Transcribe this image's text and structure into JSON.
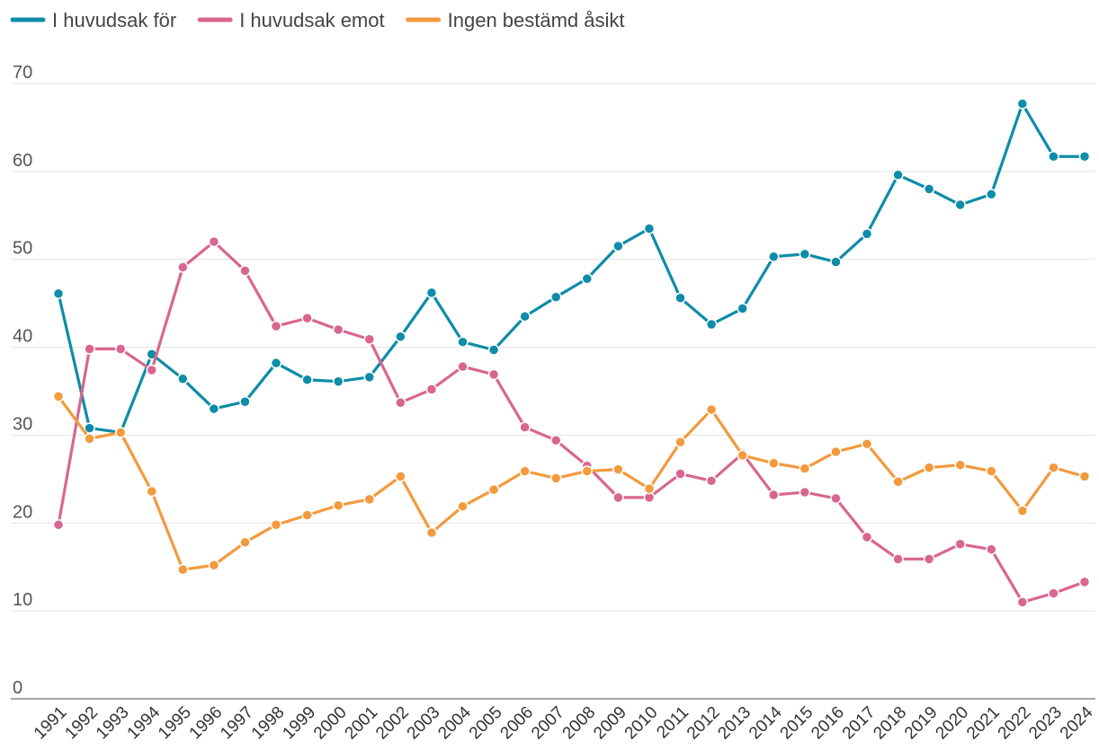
{
  "chart_data": {
    "type": "line",
    "categories": [
      "1991",
      "1992",
      "1993",
      "1994",
      "1995",
      "1996",
      "1997",
      "1998",
      "1999",
      "2000",
      "2001",
      "2002",
      "2003",
      "2004",
      "2005",
      "2006",
      "2007",
      "2008",
      "2009",
      "2010",
      "2011",
      "2012",
      "2013",
      "2014",
      "2015",
      "2016",
      "2017",
      "2018",
      "2019",
      "2020",
      "2021",
      "2022",
      "2023",
      "2024"
    ],
    "series": [
      {
        "name": "I huvudsak för",
        "color": "#0e8ca8",
        "values": [
          46.1,
          30.8,
          30.3,
          39.2,
          36.4,
          33.0,
          33.8,
          38.2,
          36.3,
          36.1,
          36.6,
          41.2,
          46.2,
          40.6,
          39.7,
          43.5,
          45.7,
          47.8,
          51.5,
          53.5,
          45.6,
          42.6,
          44.4,
          50.3,
          50.6,
          49.7,
          52.9,
          59.6,
          58.0,
          56.2,
          57.4,
          67.7,
          61.7,
          61.7
        ]
      },
      {
        "name": "I huvudsak emot",
        "color": "#d9668f",
        "values": [
          19.8,
          39.8,
          39.8,
          37.4,
          49.1,
          52.0,
          48.7,
          42.4,
          43.3,
          42.0,
          40.9,
          33.7,
          35.2,
          37.8,
          36.9,
          30.9,
          29.4,
          26.5,
          22.9,
          22.9,
          25.6,
          24.8,
          27.9,
          23.2,
          23.5,
          22.8,
          18.4,
          15.9,
          15.9,
          17.6,
          17.0,
          11.0,
          12.0,
          13.3
        ]
      },
      {
        "name": "Ingen bestämd åsikt",
        "color": "#f39a3c",
        "values": [
          34.4,
          29.6,
          30.3,
          23.6,
          14.7,
          15.2,
          17.8,
          19.8,
          20.9,
          22.0,
          22.7,
          25.3,
          18.9,
          21.9,
          23.8,
          25.9,
          25.1,
          25.9,
          26.1,
          23.9,
          29.2,
          32.9,
          27.7,
          26.8,
          26.2,
          28.1,
          29.0,
          24.7,
          26.3,
          26.6,
          25.9,
          21.4,
          26.3,
          25.3
        ]
      }
    ],
    "ylim": [
      0,
      70
    ],
    "yticks": [
      0,
      10,
      20,
      30,
      40,
      50,
      60,
      70
    ],
    "grid": true,
    "legend": "top"
  }
}
